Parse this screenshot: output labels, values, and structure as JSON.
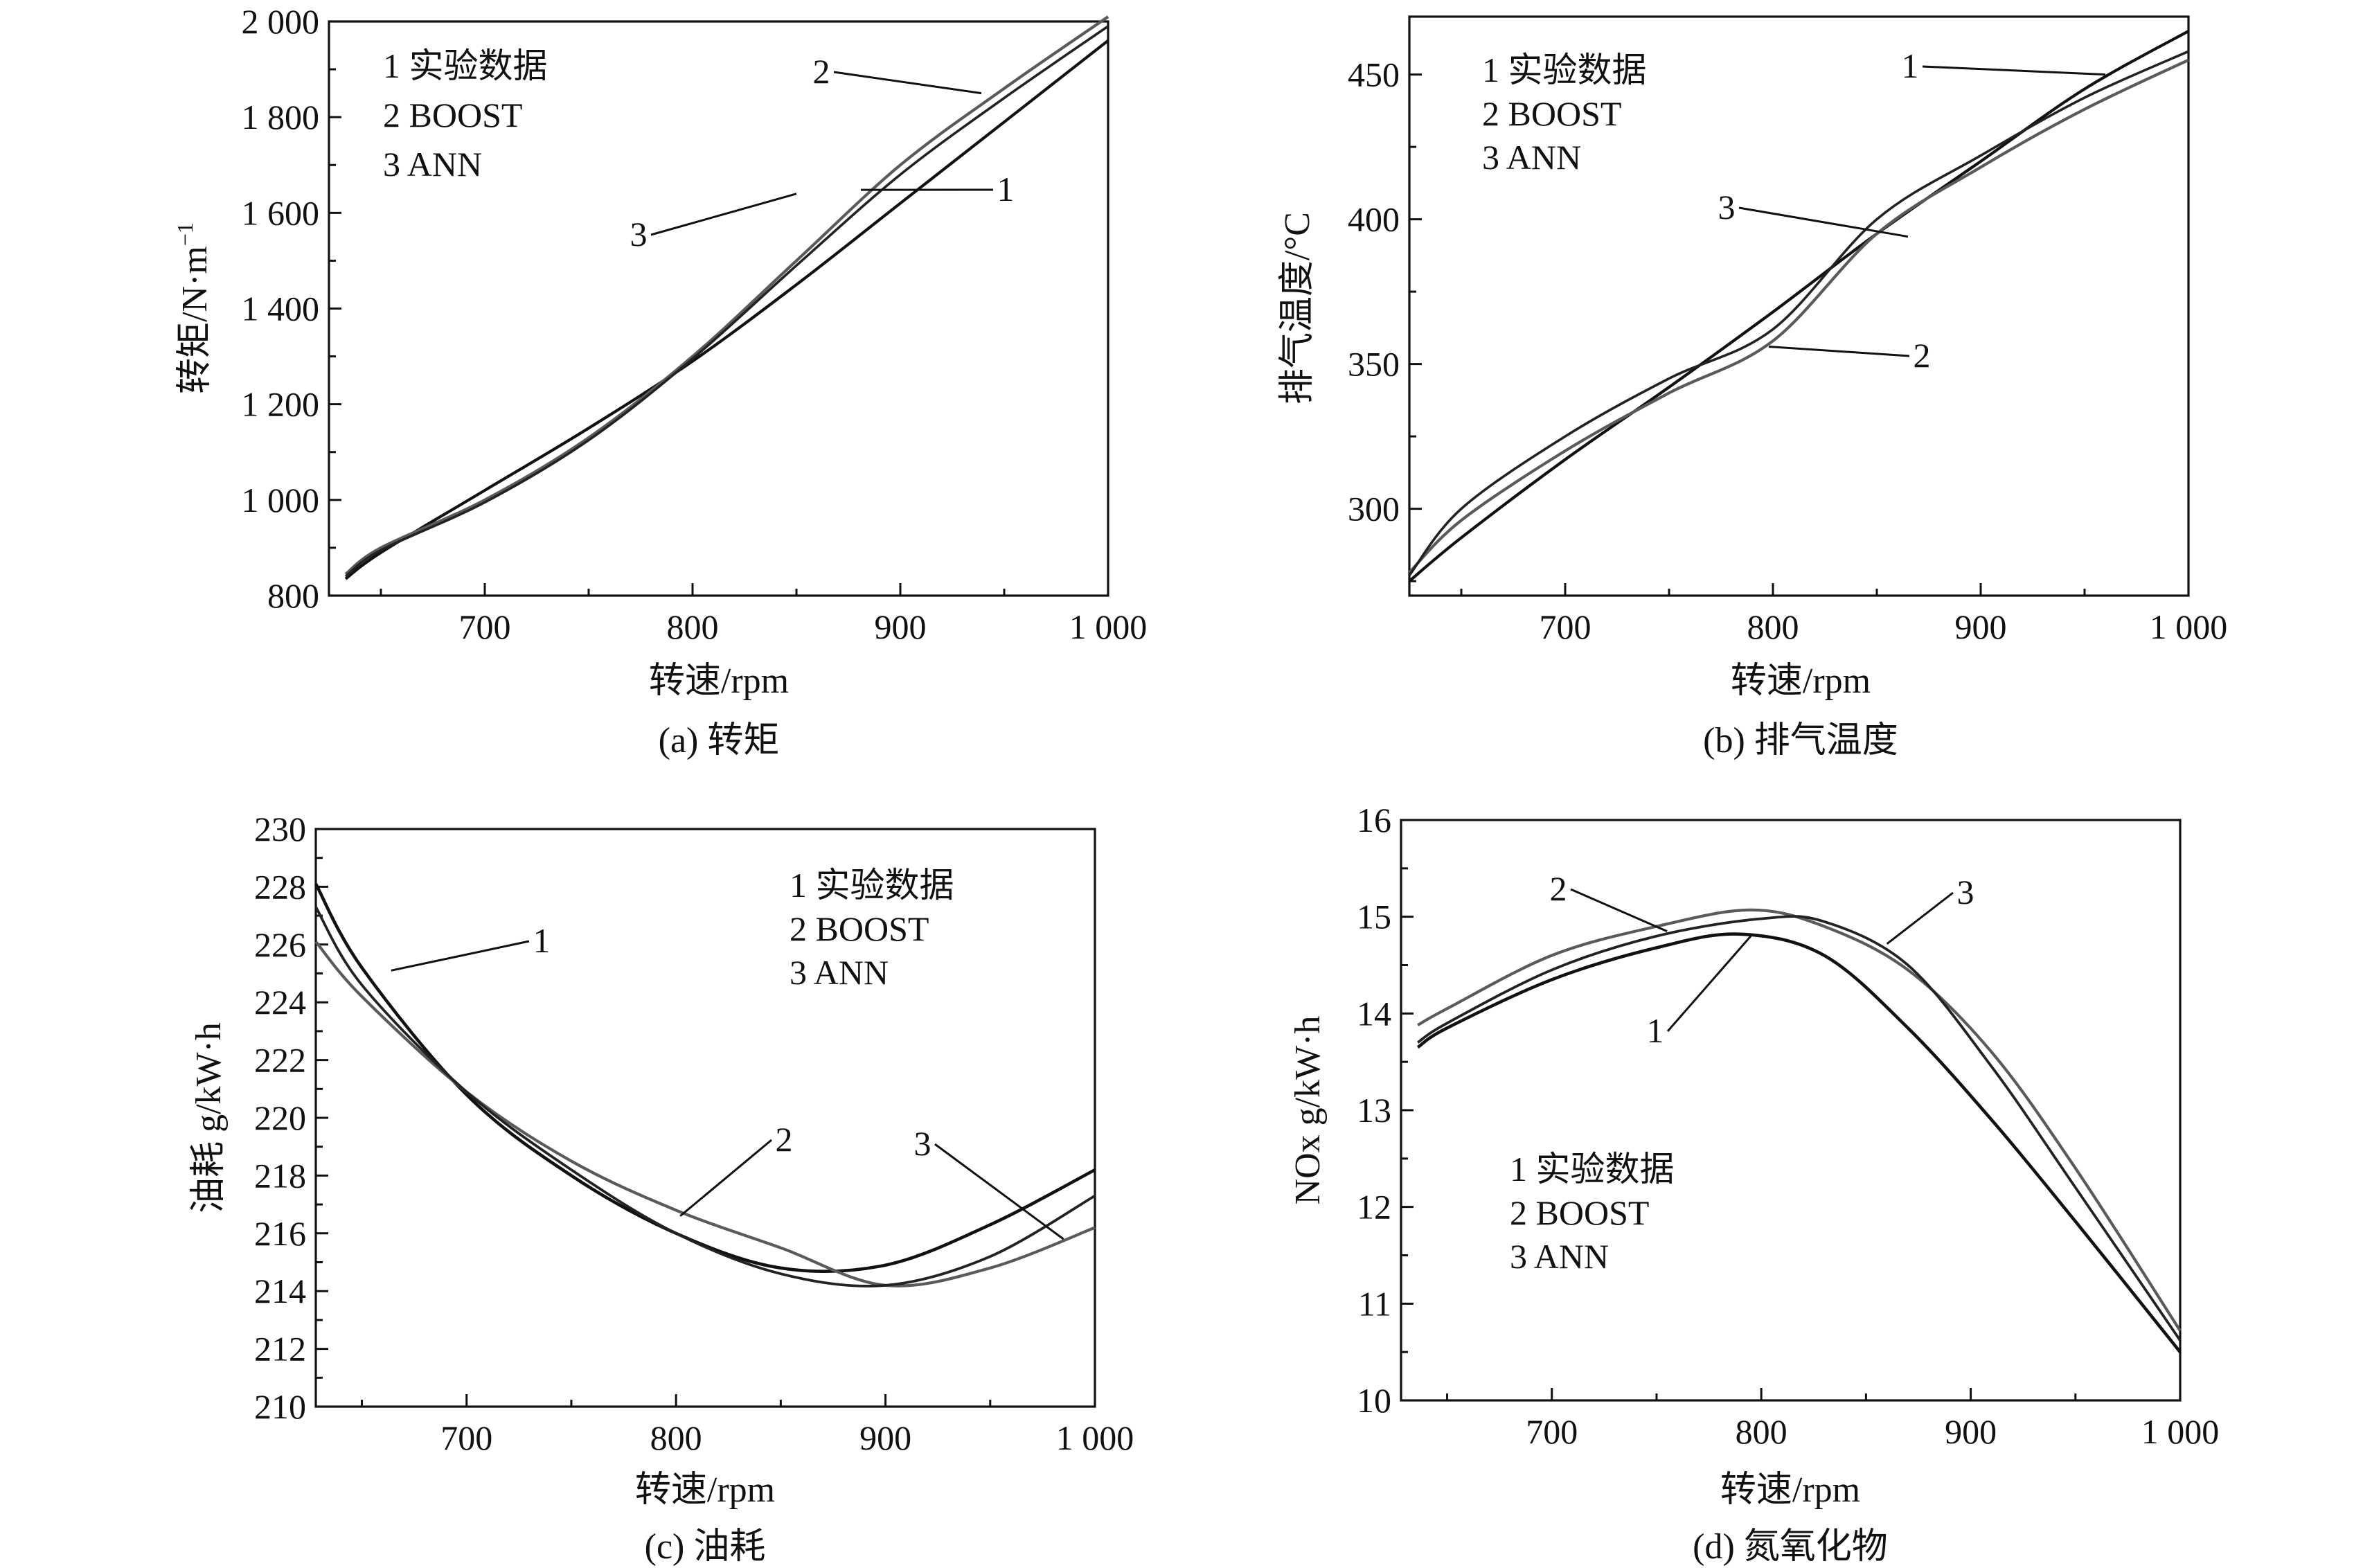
{
  "chart_data": [
    {
      "id": "a",
      "type": "line",
      "caption": "(a) 转矩",
      "xlabel": "转速/rpm",
      "ylabel": "转矩/N·m",
      "ylabel_sup": "−1",
      "xlim": [
        625,
        1000
      ],
      "ylim": [
        800,
        2000
      ],
      "xticks": [
        700,
        800,
        900,
        1000
      ],
      "xtick_labels": [
        "700",
        "800",
        "900",
        "1 000"
      ],
      "yticks": [
        800,
        1000,
        1200,
        1400,
        1600,
        1800,
        2000
      ],
      "ytick_labels": [
        "800",
        "1 000",
        "1 200",
        "1 400",
        "1 600",
        "1 800",
        "2 000"
      ],
      "legend": [
        "1 实验数据",
        "2 BOOST",
        "3 ANN"
      ],
      "series": [
        {
          "name": "1",
          "x": [
            633,
            650,
            700,
            750,
            800,
            850,
            900,
            950,
            1000
          ],
          "y": [
            835,
            890,
            1020,
            1150,
            1290,
            1450,
            1620,
            1790,
            1960
          ]
        },
        {
          "name": "2",
          "x": [
            633,
            650,
            700,
            750,
            800,
            850,
            900,
            950,
            1000
          ],
          "y": [
            845,
            900,
            1000,
            1130,
            1300,
            1500,
            1700,
            1860,
            2010
          ]
        },
        {
          "name": "3",
          "x": [
            633,
            650,
            700,
            750,
            800,
            850,
            900,
            950,
            1000
          ],
          "y": [
            840,
            895,
            995,
            1125,
            1295,
            1490,
            1680,
            1840,
            1990
          ]
        }
      ],
      "callouts": [
        {
          "label": "1",
          "point": [
            881,
            1648
          ]
        },
        {
          "label": "2",
          "point": [
            939,
            1850
          ]
        },
        {
          "label": "3",
          "point": [
            850,
            1640
          ]
        }
      ]
    },
    {
      "id": "b",
      "type": "line",
      "caption": "(b) 排气温度",
      "xlabel": "转速/rpm",
      "ylabel": "排气温度/°C",
      "xlim": [
        625,
        1000
      ],
      "ylim": [
        270,
        470
      ],
      "xticks": [
        700,
        800,
        900,
        1000
      ],
      "xtick_labels": [
        "700",
        "800",
        "900",
        "1 000"
      ],
      "yticks": [
        300,
        350,
        400,
        450
      ],
      "ytick_labels": [
        "300",
        "350",
        "400",
        "450"
      ],
      "legend": [
        "1 实验数据",
        "2 BOOST",
        "3 ANN"
      ],
      "series": [
        {
          "name": "1",
          "x": [
            625,
            650,
            700,
            750,
            800,
            850,
            900,
            950,
            1000
          ],
          "y": [
            275,
            290,
            317,
            342,
            368,
            395,
            420,
            445,
            465
          ]
        },
        {
          "name": "2",
          "x": [
            625,
            650,
            700,
            750,
            800,
            850,
            900,
            950,
            1000
          ],
          "y": [
            278,
            296,
            320,
            340,
            358,
            395,
            418,
            438,
            455
          ]
        },
        {
          "name": "3",
          "x": [
            625,
            650,
            700,
            750,
            800,
            850,
            900,
            950,
            1000
          ],
          "y": [
            277,
            300,
            325,
            345,
            362,
            400,
            422,
            442,
            458
          ]
        }
      ],
      "callouts": [
        {
          "label": "1",
          "point": [
            960,
            450
          ]
        },
        {
          "label": "2",
          "point": [
            798,
            356
          ]
        },
        {
          "label": "3",
          "point": [
            865,
            394
          ]
        }
      ]
    },
    {
      "id": "c",
      "type": "line",
      "caption": "(c) 油耗",
      "xlabel": "转速/rpm",
      "ylabel": "油耗 g/kW·h",
      "xlim": [
        628,
        1000
      ],
      "ylim": [
        210,
        230
      ],
      "xticks": [
        700,
        800,
        900,
        1000
      ],
      "xtick_labels": [
        "700",
        "800",
        "900",
        "1 000"
      ],
      "yticks": [
        210,
        212,
        214,
        216,
        218,
        220,
        222,
        224,
        226,
        228,
        230
      ],
      "ytick_labels": [
        "210",
        "212",
        "214",
        "216",
        "218",
        "220",
        "222",
        "224",
        "226",
        "228",
        "230"
      ],
      "legend": [
        "1 实验数据",
        "2 BOOST",
        "3 ANN"
      ],
      "series": [
        {
          "name": "1",
          "x": [
            628,
            650,
            700,
            750,
            800,
            850,
            900,
            950,
            1000
          ],
          "y": [
            228.1,
            225.2,
            220.8,
            218.0,
            216.0,
            214.8,
            214.9,
            216.3,
            218.2
          ]
        },
        {
          "name": "2",
          "x": [
            628,
            650,
            700,
            750,
            800,
            850,
            900,
            950,
            1000
          ],
          "y": [
            226.1,
            224.2,
            220.9,
            218.5,
            216.8,
            215.5,
            214.2,
            214.8,
            216.2
          ]
        },
        {
          "name": "3",
          "x": [
            628,
            650,
            700,
            750,
            800,
            850,
            900,
            950,
            1000
          ],
          "y": [
            227.3,
            224.6,
            220.9,
            218.2,
            216.0,
            214.6,
            214.2,
            215.2,
            217.3
          ]
        }
      ],
      "callouts": [
        {
          "label": "1",
          "point": [
            664,
            225.1
          ]
        },
        {
          "label": "2",
          "point": [
            802,
            216.6
          ]
        },
        {
          "label": "3",
          "point": [
            985,
            215.8
          ]
        }
      ]
    },
    {
      "id": "d",
      "type": "line",
      "caption": "(d) 氮氧化物",
      "xlabel": "转速/rpm",
      "ylabel": "NOx g/kW·h",
      "xlim": [
        628,
        1000
      ],
      "ylim": [
        10,
        16
      ],
      "xticks": [
        700,
        800,
        900,
        1000
      ],
      "xtick_labels": [
        "700",
        "800",
        "900",
        "1 000"
      ],
      "yticks": [
        10,
        11,
        12,
        13,
        14,
        15,
        16
      ],
      "ytick_labels": [
        "10",
        "11",
        "12",
        "13",
        "14",
        "15",
        "16"
      ],
      "legend": [
        "1 实验数据",
        "2 BOOST",
        "3 ANN"
      ],
      "series": [
        {
          "name": "1",
          "x": [
            636,
            650,
            700,
            750,
            790,
            830,
            870,
            910,
            950,
            1000
          ],
          "y": [
            13.65,
            13.85,
            14.35,
            14.68,
            14.82,
            14.6,
            13.85,
            12.9,
            11.85,
            10.5
          ]
        },
        {
          "name": "2",
          "x": [
            636,
            650,
            700,
            750,
            795,
            830,
            870,
            910,
            950,
            1000
          ],
          "y": [
            13.88,
            14.05,
            14.6,
            14.9,
            15.07,
            14.9,
            14.45,
            13.6,
            12.4,
            10.72
          ]
        },
        {
          "name": "3",
          "x": [
            636,
            650,
            700,
            750,
            800,
            830,
            870,
            910,
            950,
            1000
          ],
          "y": [
            13.7,
            13.9,
            14.45,
            14.8,
            14.98,
            14.95,
            14.5,
            13.45,
            12.2,
            10.62
          ]
        }
      ],
      "callouts": [
        {
          "label": "1",
          "point": [
            795,
            14.8
          ]
        },
        {
          "label": "2",
          "point": [
            755,
            14.85
          ]
        },
        {
          "label": "3",
          "point": [
            860,
            14.72
          ]
        }
      ]
    }
  ]
}
